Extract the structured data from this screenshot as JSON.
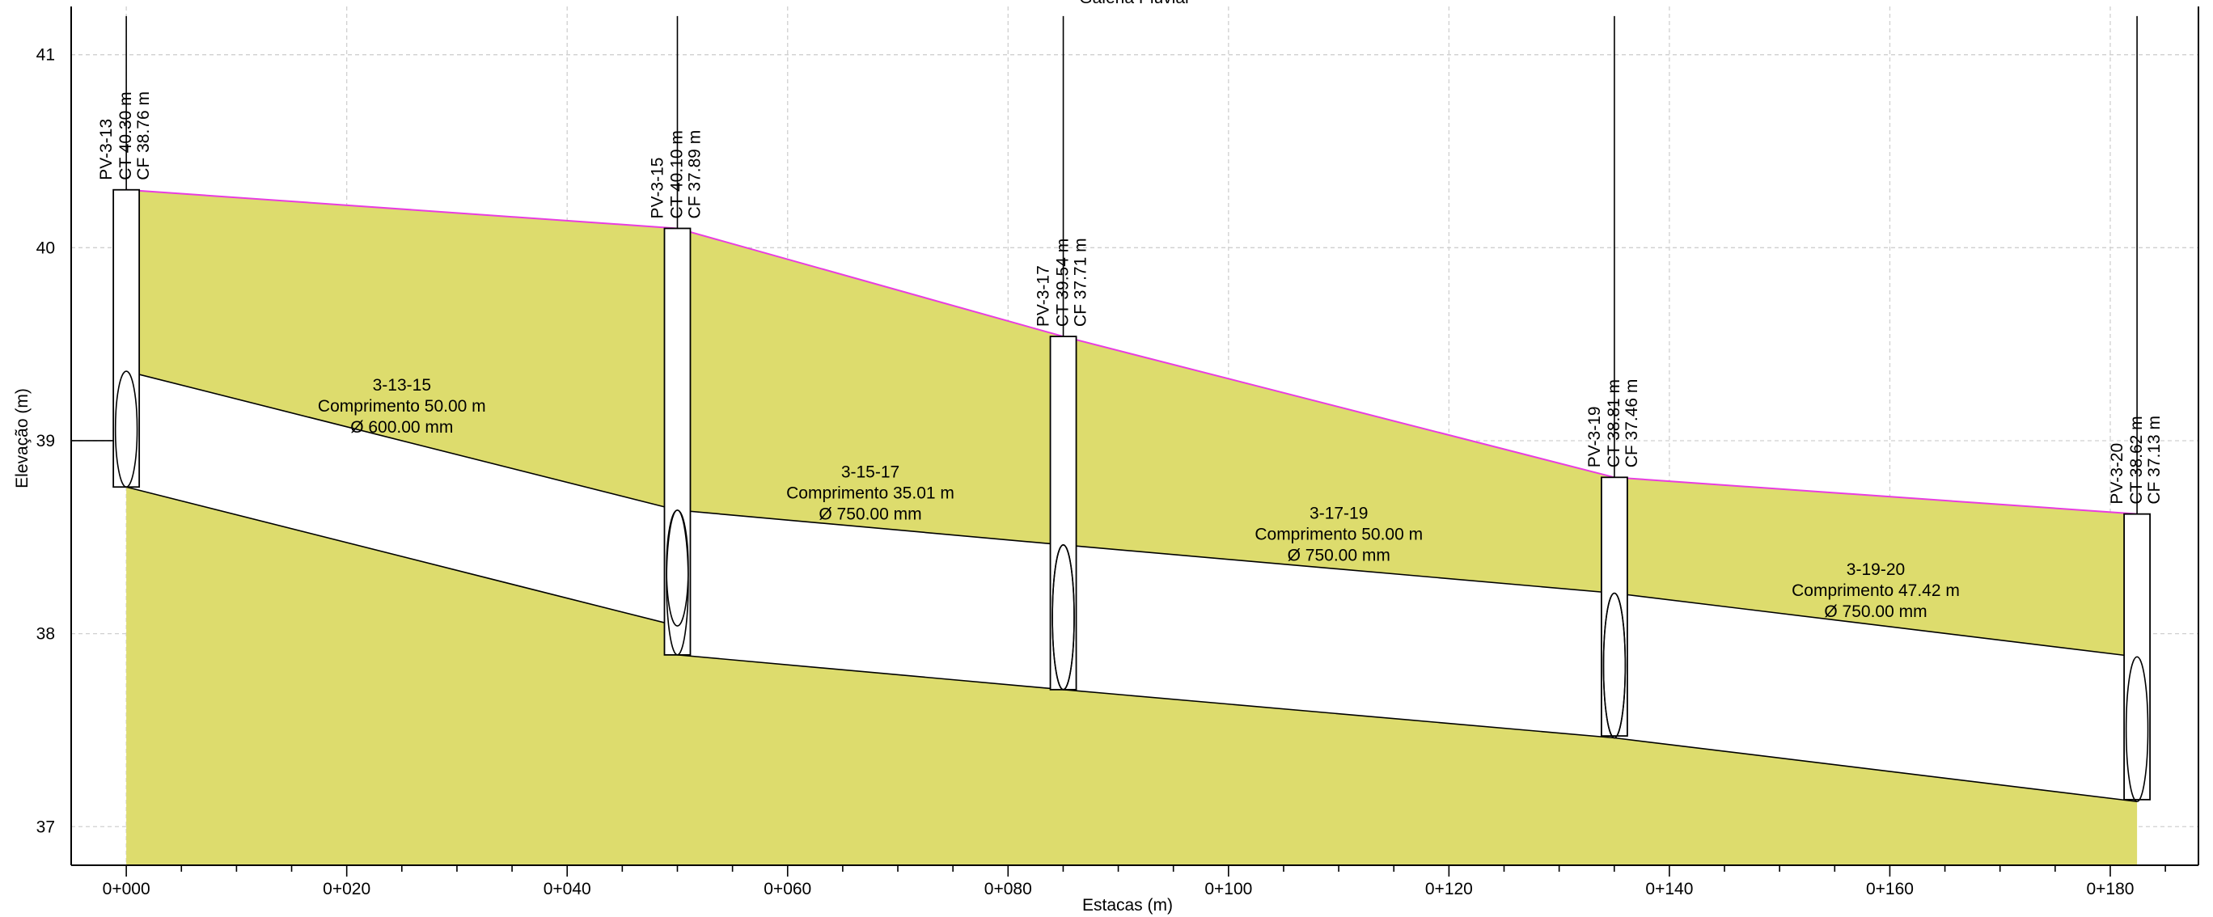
{
  "chart_data": {
    "type": "area",
    "title": "Galeria Pluvial",
    "xlabel": "Estacas (m)",
    "ylabel": "Elevação (m)",
    "xlim": [
      -5,
      188
    ],
    "ylim": [
      36.8,
      41.25
    ],
    "x_ticks": [
      {
        "value": 0,
        "label": "0+000"
      },
      {
        "value": 20,
        "label": "0+020"
      },
      {
        "value": 40,
        "label": "0+040"
      },
      {
        "value": 60,
        "label": "0+060"
      },
      {
        "value": 80,
        "label": "0+080"
      },
      {
        "value": 100,
        "label": "0+100"
      },
      {
        "value": 120,
        "label": "0+120"
      },
      {
        "value": 140,
        "label": "0+140"
      },
      {
        "value": 160,
        "label": "0+160"
      },
      {
        "value": 180,
        "label": "0+180"
      }
    ],
    "y_ticks": [
      {
        "value": 37,
        "label": "37"
      },
      {
        "value": 38,
        "label": "38"
      },
      {
        "value": 39,
        "label": "39"
      },
      {
        "value": 40,
        "label": "40"
      },
      {
        "value": 41,
        "label": "41"
      }
    ],
    "grid": true,
    "colors": {
      "fill": "#dddc6d",
      "terrain": "#e83de0",
      "grid": "#d0d0d0",
      "line": "#000000"
    },
    "manholes": [
      {
        "x": 0.0,
        "ct": 40.3,
        "cf": 38.76,
        "bottom": 38.76,
        "labels": [
          "PV-3-13",
          "CT  40.30 m",
          "CF  38.76 m"
        ]
      },
      {
        "x": 50.0,
        "ct": 40.1,
        "cf": 37.89,
        "bottom": 37.89,
        "labels": [
          "PV-3-15",
          "CT  40.10 m",
          "CF  37.89 m"
        ]
      },
      {
        "x": 85.01,
        "ct": 39.54,
        "cf": 37.71,
        "bottom": 37.71,
        "labels": [
          "PV-3-17",
          "CT  39.54 m",
          "CF  37.71 m"
        ]
      },
      {
        "x": 135.01,
        "ct": 38.81,
        "cf": 37.46,
        "bottom": 37.47,
        "labels": [
          "PV-3-19",
          "CT  38.81 m",
          "CF  37.46 m"
        ]
      },
      {
        "x": 182.43,
        "ct": 38.62,
        "cf": 37.13,
        "bottom": 37.14,
        "labels": [
          "PV-3-20",
          "CT  38.62 m",
          "CF  37.13 m"
        ]
      }
    ],
    "pipes": [
      {
        "x0": 0.0,
        "x1": 50.0,
        "top0": 39.36,
        "top1": 38.64,
        "bot0": 38.76,
        "bot1": 38.04,
        "labels": [
          "3-13-15",
          "Comprimento 50.00 m",
          "Ø 600.00 mm"
        ]
      },
      {
        "x0": 50.0,
        "x1": 85.01,
        "top0": 38.64,
        "top1": 38.46,
        "bot0": 37.89,
        "bot1": 37.71,
        "labels": [
          "3-15-17",
          "Comprimento 35.01 m",
          "Ø 750.00 mm"
        ]
      },
      {
        "x0": 85.01,
        "x1": 135.01,
        "top0": 38.46,
        "top1": 38.21,
        "bot0": 37.71,
        "bot1": 37.46,
        "labels": [
          "3-17-19",
          "Comprimento 50.00 m",
          "Ø 750.00 mm"
        ]
      },
      {
        "x0": 135.01,
        "x1": 182.43,
        "top0": 38.21,
        "top1": 37.88,
        "bot0": 37.46,
        "bot1": 37.13,
        "labels": [
          "3-19-20",
          "Comprimento 47.42 m",
          "Ø 750.00 mm"
        ]
      }
    ]
  }
}
